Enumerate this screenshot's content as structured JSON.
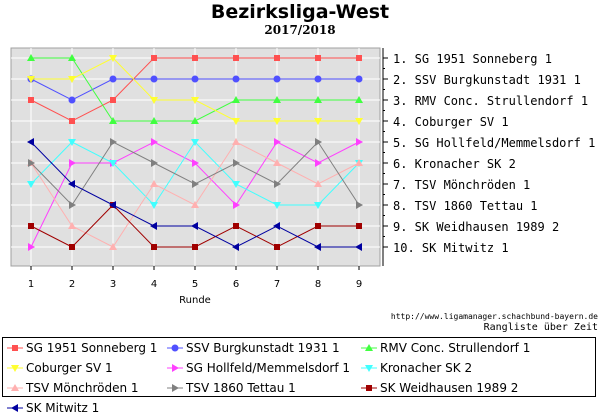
{
  "title": "Bezirksliga-West",
  "subtitle": "2017/2018",
  "xlabel": "Runde",
  "url": "http://www.ligamanager.schachbund-bayern.de",
  "note": "Rangliste über Zeit",
  "chart_data": {
    "type": "line",
    "title": "Bezirksliga-West",
    "subtitle": "2017/2018",
    "xlabel": "Runde",
    "x": [
      1,
      2,
      3,
      4,
      5,
      6,
      7,
      8,
      9
    ],
    "ylim": [
      1,
      10
    ],
    "y_inverted": true,
    "grid": true,
    "legend_position": "bottom",
    "rank_labels": [
      "1. SG 1951 Sonneberg 1",
      "2. SSV Burgkunstadt 1931 1",
      "3. RMV Conc. Strullendorf 1",
      "4. Coburger SV 1",
      "5. SG Hollfeld/Memmelsdorf 1",
      "6. Kronacher SK 2",
      "7. TSV Mönchröden 1",
      "8. TSV 1860 Tettau 1",
      "9. SK Weidhausen 1989 2",
      "10. SK Mitwitz 1"
    ],
    "series": [
      {
        "name": "SG 1951 Sonneberg 1",
        "color": "#ff5050",
        "marker": "square",
        "values": [
          3,
          4,
          3,
          1,
          1,
          1,
          1,
          1,
          1
        ]
      },
      {
        "name": "SSV Burgkunstadt 1931 1",
        "color": "#5050ff",
        "marker": "circle",
        "values": [
          2,
          3,
          2,
          2,
          2,
          2,
          2,
          2,
          2
        ]
      },
      {
        "name": "RMV Conc. Strullendorf 1",
        "color": "#40ff40",
        "marker": "triangle-up",
        "values": [
          1,
          1,
          4,
          4,
          4,
          3,
          3,
          3,
          3
        ]
      },
      {
        "name": "Coburger SV 1",
        "color": "#ffff30",
        "marker": "triangle-down",
        "values": [
          2,
          2,
          1,
          3,
          3,
          4,
          4,
          4,
          4
        ]
      },
      {
        "name": "SG Hollfeld/Memmelsdorf 1",
        "color": "#ff40ff",
        "marker": "triangle-right",
        "values": [
          10,
          6,
          6,
          5,
          6,
          8,
          5,
          6,
          5
        ]
      },
      {
        "name": "Kronacher SK 2",
        "color": "#40ffff",
        "marker": "triangle-down",
        "values": [
          7,
          5,
          6,
          8,
          5,
          7,
          8,
          8,
          6
        ]
      },
      {
        "name": "TSV Mönchröden 1",
        "color": "#ffb0b0",
        "marker": "triangle-up",
        "values": [
          6,
          9,
          10,
          7,
          8,
          5,
          6,
          7,
          6
        ]
      },
      {
        "name": "TSV 1860 Tettau 1",
        "color": "#808080",
        "marker": "triangle-right",
        "values": [
          6,
          8,
          5,
          6,
          7,
          6,
          7,
          5,
          8
        ]
      },
      {
        "name": "SK Weidhausen 1989 2",
        "color": "#a00000",
        "marker": "square",
        "values": [
          9,
          10,
          8,
          10,
          10,
          9,
          10,
          9,
          9
        ]
      },
      {
        "name": "SK Mitwitz 1",
        "color": "#0000a0",
        "marker": "triangle-left",
        "values": [
          5,
          7,
          8,
          9,
          9,
          10,
          9,
          10,
          10
        ]
      }
    ]
  }
}
